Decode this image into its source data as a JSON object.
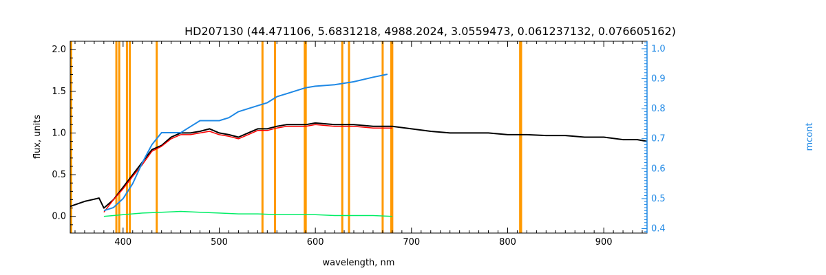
{
  "chart_data": {
    "type": "line",
    "title": "HD207130    (44.471106, 5.6831218, 4988.2024, 3.0559473, 0.061237132, 0.076605162)",
    "xlabel": "wavelength, nm",
    "ylabel": "flux, units",
    "y2label": "mcont",
    "xlim": [
      345,
      945
    ],
    "ylim": [
      -0.2,
      2.1
    ],
    "y2lim": [
      0.385,
      1.025
    ],
    "xticks": [
      400,
      500,
      600,
      700,
      800,
      900
    ],
    "yticks": [
      0.0,
      0.5,
      1.0,
      1.5,
      2.0
    ],
    "y2ticks": [
      0.4,
      0.5,
      0.6,
      0.7,
      0.8,
      0.9,
      1.0
    ],
    "grid": false,
    "colors": {
      "observed": "#000000",
      "model": "#ff0000",
      "residual": "#00ee66",
      "continuum": "#1e88e5",
      "masks": "#ff9900",
      "right_axis": "#1e88e5"
    },
    "mask_lines": [
      346,
      393,
      396,
      404,
      407,
      435,
      545,
      558,
      589,
      590,
      628,
      635,
      670,
      679,
      680,
      813,
      814
    ],
    "series": [
      {
        "key": "observed",
        "x": [
          345,
          360,
          375,
          380,
          390,
          400,
          410,
          420,
          430,
          440,
          450,
          460,
          470,
          480,
          490,
          500,
          510,
          520,
          530,
          540,
          550,
          560,
          570,
          580,
          590,
          600,
          620,
          640,
          660,
          680,
          700,
          720,
          740,
          760,
          780,
          800,
          820,
          840,
          860,
          880,
          900,
          920,
          935,
          945
        ],
        "y": [
          0.12,
          0.18,
          0.22,
          0.1,
          0.2,
          0.35,
          0.5,
          0.65,
          0.8,
          0.85,
          0.95,
          1.0,
          1.0,
          1.02,
          1.05,
          1.0,
          0.98,
          0.95,
          1.0,
          1.05,
          1.05,
          1.08,
          1.1,
          1.1,
          1.1,
          1.12,
          1.1,
          1.1,
          1.08,
          1.08,
          1.05,
          1.02,
          1.0,
          1.0,
          1.0,
          0.98,
          0.98,
          0.97,
          0.97,
          0.95,
          0.95,
          0.92,
          0.92,
          0.9
        ]
      },
      {
        "key": "model",
        "x": [
          380,
          390,
          400,
          410,
          420,
          430,
          440,
          450,
          460,
          470,
          480,
          490,
          500,
          510,
          520,
          530,
          540,
          550,
          560,
          570,
          580,
          590,
          600,
          620,
          640,
          660,
          680
        ],
        "y": [
          0.05,
          0.2,
          0.33,
          0.48,
          0.62,
          0.78,
          0.84,
          0.93,
          0.98,
          0.98,
          1.0,
          1.02,
          0.98,
          0.96,
          0.93,
          0.98,
          1.03,
          1.03,
          1.06,
          1.08,
          1.08,
          1.08,
          1.1,
          1.08,
          1.08,
          1.06,
          1.06
        ]
      },
      {
        "key": "residual",
        "x": [
          380,
          400,
          420,
          440,
          460,
          480,
          500,
          520,
          540,
          560,
          580,
          600,
          620,
          640,
          660,
          680
        ],
        "y": [
          0.0,
          0.02,
          0.04,
          0.05,
          0.06,
          0.05,
          0.04,
          0.03,
          0.03,
          0.02,
          0.02,
          0.02,
          0.01,
          0.01,
          0.01,
          0.0
        ]
      },
      {
        "key": "continuum",
        "axis": "right",
        "x": [
          380,
          390,
          400,
          410,
          420,
          430,
          440,
          450,
          460,
          470,
          480,
          490,
          500,
          510,
          520,
          530,
          540,
          550,
          560,
          570,
          580,
          590,
          600,
          620,
          640,
          660,
          675
        ],
        "y": [
          0.46,
          0.47,
          0.5,
          0.55,
          0.62,
          0.68,
          0.72,
          0.72,
          0.72,
          0.74,
          0.76,
          0.76,
          0.76,
          0.77,
          0.79,
          0.8,
          0.81,
          0.82,
          0.84,
          0.85,
          0.86,
          0.87,
          0.875,
          0.88,
          0.89,
          0.905,
          0.915
        ]
      }
    ]
  }
}
